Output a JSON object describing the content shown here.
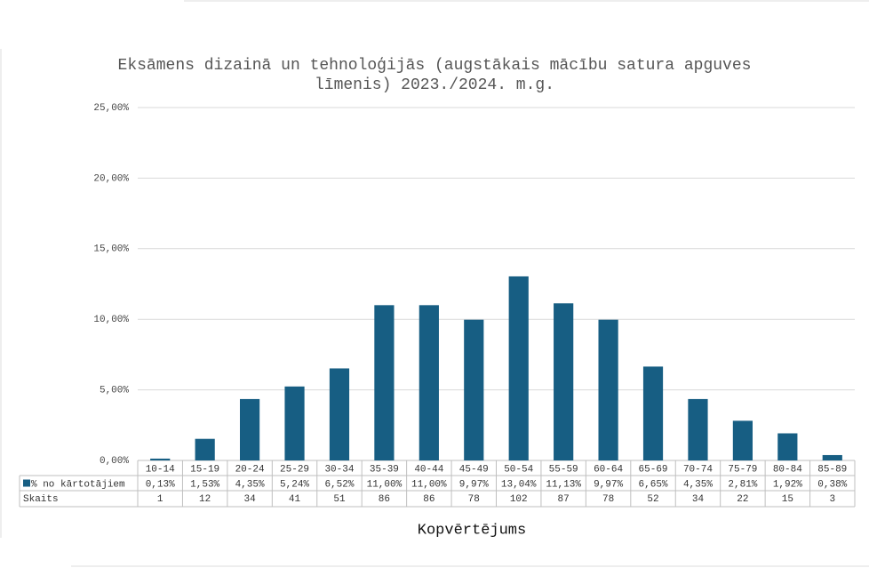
{
  "chart_data": {
    "type": "bar",
    "title": [
      "Eksāmens dizainā un tehnoloģijās (augstākais mācību satura apguves",
      "līmenis) 2023./2024. m.g."
    ],
    "x_label": "Kopvērtējums",
    "categories": [
      "10-14",
      "15-19",
      "20-24",
      "25-29",
      "30-34",
      "35-39",
      "40-44",
      "45-49",
      "50-54",
      "55-59",
      "60-64",
      "65-69",
      "70-74",
      "75-79",
      "80-84",
      "85-89"
    ],
    "series": [
      {
        "name": "% no kārtotājiem",
        "color": "#175e83",
        "values": [
          0.13,
          1.53,
          4.35,
          5.24,
          6.52,
          11.0,
          11.0,
          9.97,
          13.04,
          11.13,
          9.97,
          6.65,
          4.35,
          2.81,
          1.92,
          0.38
        ],
        "value_labels": [
          "0,13%",
          "1,53%",
          "4,35%",
          "5,24%",
          "6,52%",
          "11,00%",
          "11,00%",
          "9,97%",
          "13,04%",
          "11,13%",
          "9,97%",
          "6,65%",
          "4,35%",
          "2,81%",
          "1,92%",
          "0,38%"
        ]
      }
    ],
    "count_row": {
      "label": "Skaits",
      "values": [
        1,
        12,
        34,
        41,
        51,
        86,
        86,
        78,
        102,
        87,
        78,
        52,
        34,
        22,
        15,
        3
      ]
    },
    "ylim": [
      0,
      25
    ],
    "yticks": [
      {
        "value": 0,
        "label": "0,00%"
      },
      {
        "value": 5,
        "label": "5,00%"
      },
      {
        "value": 10,
        "label": "10,00%"
      },
      {
        "value": 15,
        "label": "15,00%"
      },
      {
        "value": 20,
        "label": "20,00%"
      },
      {
        "value": 25,
        "label": "25,00%"
      }
    ],
    "grid": true
  }
}
